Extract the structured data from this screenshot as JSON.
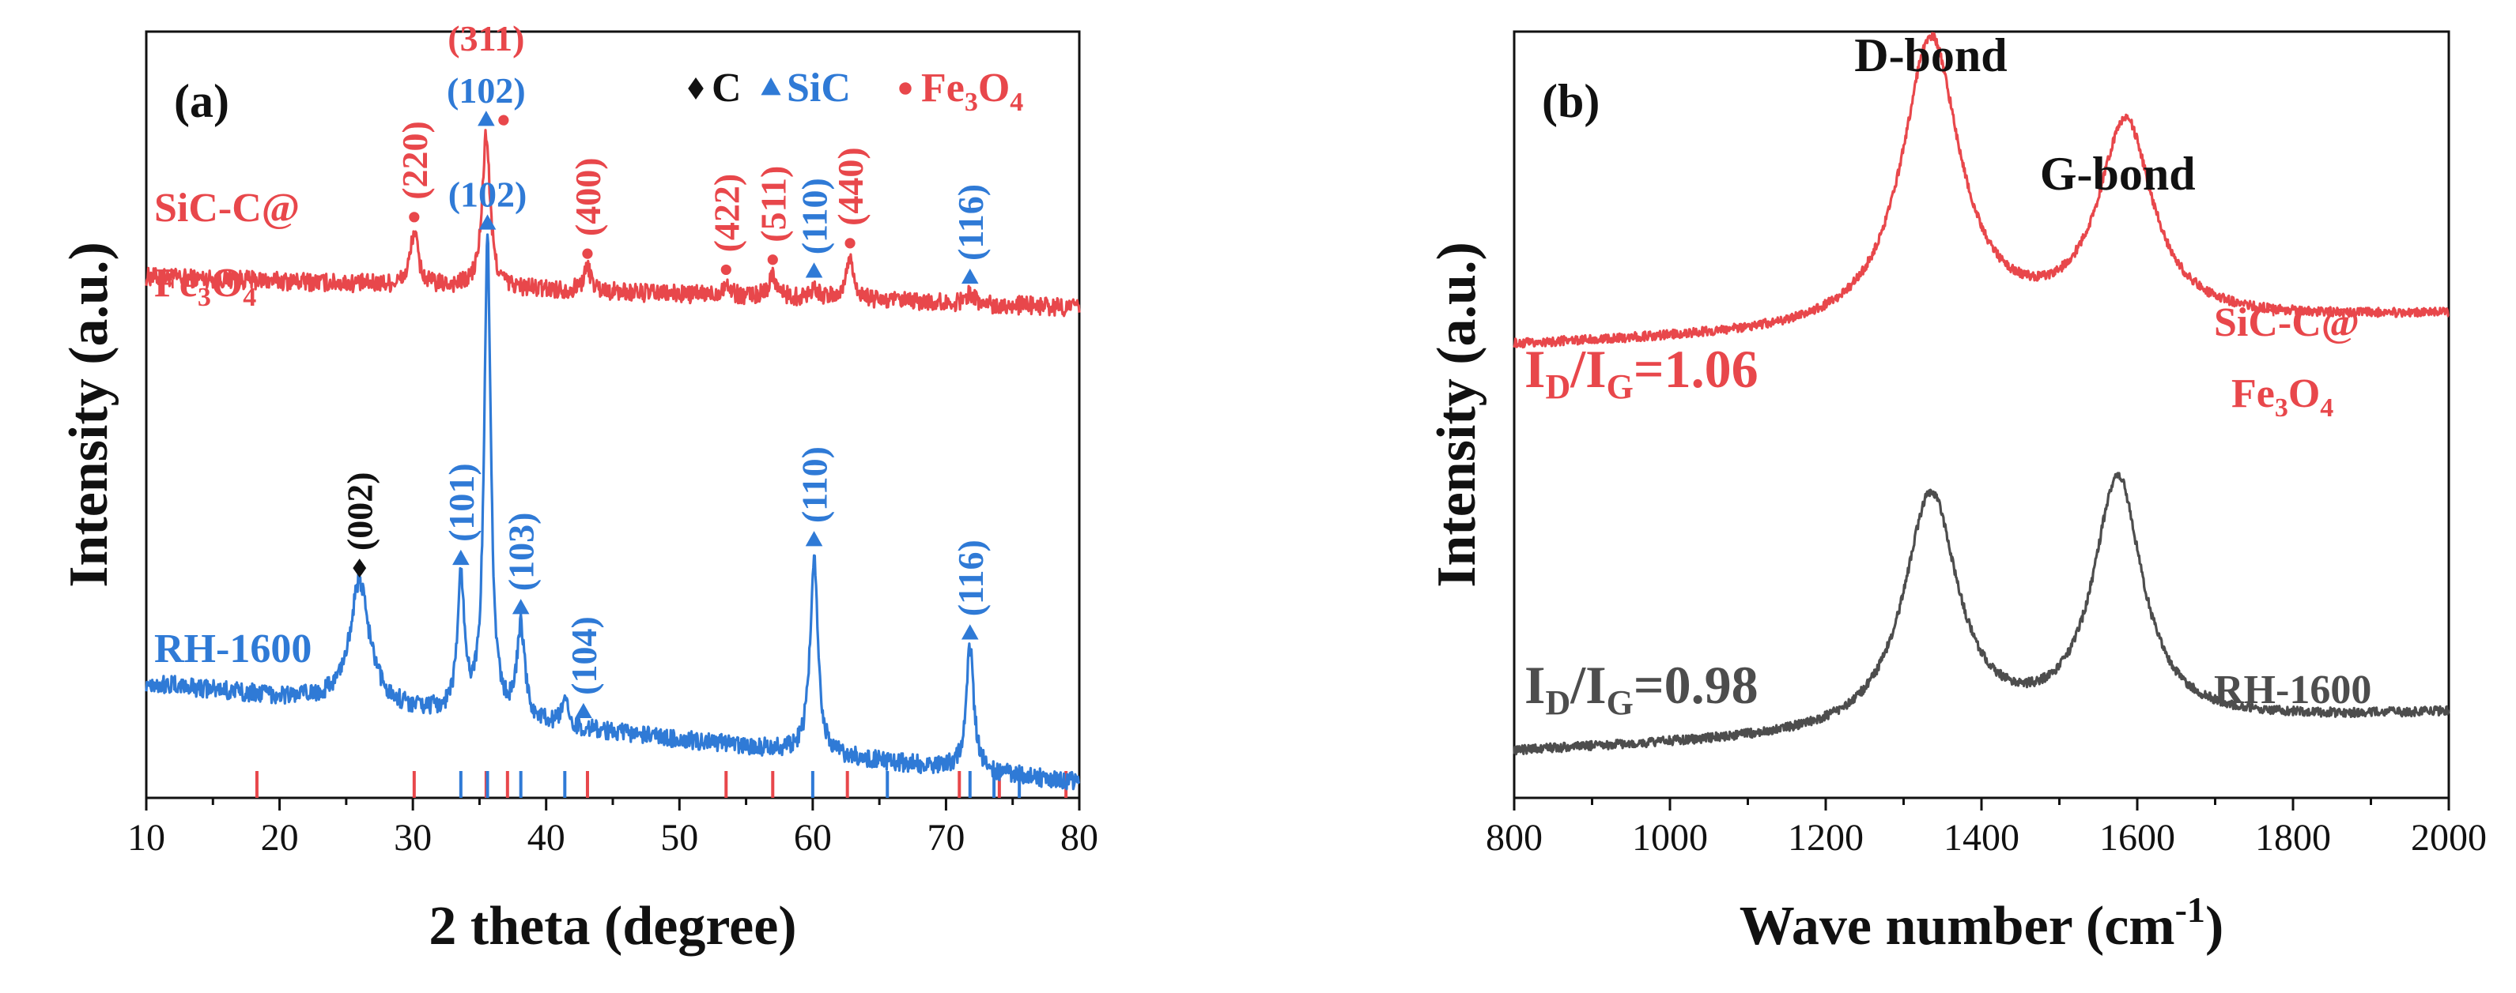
{
  "chart_data": [
    {
      "type": "line",
      "panel_label": "(a)",
      "xlabel": "2 theta (degree)",
      "ylabel": "Intensity (a.u.)",
      "xlim": [
        10,
        80
      ],
      "xticks": [
        10,
        20,
        30,
        40,
        50,
        60,
        70,
        80
      ],
      "legend": {
        "placement": "top-right",
        "entries": [
          {
            "symbol": "diamond",
            "label": "C",
            "color": "#111111"
          },
          {
            "symbol": "triangle",
            "label": "SiC",
            "color": "#2f7ad6"
          },
          {
            "symbol": "circle",
            "label": "Fe3O4",
            "color": "#e8474b"
          }
        ]
      },
      "series": [
        {
          "name": "SiC-C@Fe3O4",
          "label_lines": [
            "SiC-C@",
            "Fe3O4"
          ],
          "color": "#e8474b",
          "baseline": 0.68,
          "baseline_slope": -0.04,
          "noise": 0.012,
          "peaks": [
            {
              "x": 30.1,
              "h": 0.07,
              "w": 0.35
            },
            {
              "x": 35.5,
              "h": 0.2,
              "w": 0.35
            },
            {
              "x": 43.1,
              "h": 0.03,
              "w": 0.35
            },
            {
              "x": 53.5,
              "h": 0.015,
              "w": 0.35
            },
            {
              "x": 57.0,
              "h": 0.03,
              "w": 0.35
            },
            {
              "x": 60.1,
              "h": 0.015,
              "w": 0.35
            },
            {
              "x": 62.8,
              "h": 0.055,
              "w": 0.35
            },
            {
              "x": 71.8,
              "h": 0.015,
              "w": 0.35
            }
          ],
          "annotations": [
            {
              "x": 30.1,
              "text": "(220)",
              "phase": "Fe3O4",
              "orient": "vertical"
            },
            {
              "x": 35.5,
              "text": "(311)",
              "phase": "Fe3O4",
              "orient": "horizontal",
              "row": 1
            },
            {
              "x": 35.5,
              "text": "(102)",
              "phase": "SiC",
              "orient": "horizontal",
              "row": 0
            },
            {
              "x": 43.1,
              "text": "(400)",
              "phase": "Fe3O4",
              "orient": "vertical"
            },
            {
              "x": 53.5,
              "text": "(422)",
              "phase": "Fe3O4",
              "orient": "vertical"
            },
            {
              "x": 57.0,
              "text": "(511)",
              "phase": "Fe3O4",
              "orient": "vertical"
            },
            {
              "x": 60.1,
              "text": "(110)",
              "phase": "SiC",
              "orient": "vertical"
            },
            {
              "x": 62.8,
              "text": "(440)",
              "phase": "Fe3O4",
              "orient": "vertical"
            },
            {
              "x": 71.8,
              "text": "(116)",
              "phase": "SiC",
              "orient": "vertical"
            }
          ]
        },
        {
          "name": "RH-1600",
          "label_lines": [
            "RH-1600"
          ],
          "color": "#2f7ad6",
          "baseline": 0.15,
          "baseline_slope": -0.13,
          "noise": 0.012,
          "peaks": [
            {
              "x": 26.0,
              "h": 0.16,
              "w": 0.9
            },
            {
              "x": 33.6,
              "h": 0.17,
              "w": 0.32
            },
            {
              "x": 35.6,
              "h": 0.62,
              "w": 0.3
            },
            {
              "x": 38.1,
              "h": 0.12,
              "w": 0.35
            },
            {
              "x": 41.4,
              "h": 0.03,
              "w": 0.3
            },
            {
              "x": 60.1,
              "h": 0.26,
              "w": 0.35
            },
            {
              "x": 71.8,
              "h": 0.16,
              "w": 0.35
            }
          ],
          "annotations": [
            {
              "x": 26.0,
              "text": "(002)",
              "phase": "C",
              "orient": "vertical"
            },
            {
              "x": 33.6,
              "text": "(101)",
              "phase": "SiC",
              "orient": "vertical"
            },
            {
              "x": 35.6,
              "text": "(102)",
              "phase": "SiC",
              "orient": "horizontal"
            },
            {
              "x": 38.1,
              "text": "(103)",
              "phase": "SiC",
              "orient": "vertical"
            },
            {
              "x": 42.8,
              "text": "(104)",
              "phase": "SiC",
              "orient": "vertical"
            },
            {
              "x": 60.1,
              "text": "(110)",
              "phase": "SiC",
              "orient": "vertical"
            },
            {
              "x": 71.8,
              "text": "(116)",
              "phase": "SiC",
              "orient": "vertical"
            }
          ]
        }
      ],
      "reference_lines": {
        "Fe3O4": {
          "color": "#e8474b",
          "positions": [
            18.3,
            30.1,
            35.5,
            37.1,
            43.1,
            53.5,
            57.0,
            62.6,
            71.0,
            74.0,
            79.0
          ]
        },
        "SiC": {
          "color": "#2f7ad6",
          "positions": [
            33.6,
            35.6,
            38.1,
            41.4,
            60.0,
            65.6,
            71.8,
            73.6,
            75.5
          ]
        }
      }
    },
    {
      "type": "line",
      "panel_label": "(b)",
      "xlabel": "Wave number (cm-1)",
      "xlabel_parts": [
        "Wave number (cm",
        "-1",
        ")"
      ],
      "ylabel": "Intensity (a.u.)",
      "xlim": [
        800,
        2000
      ],
      "xticks": [
        800,
        1000,
        1200,
        1400,
        1600,
        1800,
        2000
      ],
      "band_labels": [
        "D-bond",
        "G-bond"
      ],
      "series": [
        {
          "name": "SiC-C@Fe3O4",
          "label_lines": [
            "SiC-C@",
            "Fe3O4"
          ],
          "color": "#e8474b",
          "ratio_text": "ID/IG=1.06",
          "ratio_value": 1.06,
          "baseline": 0.59,
          "baseline_slope": 0.04,
          "noise": 0.006,
          "peaks": [
            {
              "x": 1335,
              "h": 0.38,
              "w": 45
            },
            {
              "x": 1585,
              "h": 0.26,
              "w": 42
            }
          ]
        },
        {
          "name": "RH-1600",
          "label_lines": [
            "RH-1600"
          ],
          "color": "#4d4d4d",
          "ratio_text": "ID/IG=0.98",
          "ratio_value": 0.98,
          "baseline": 0.06,
          "baseline_slope": 0.05,
          "noise": 0.006,
          "peaks": [
            {
              "x": 1335,
              "h": 0.31,
              "w": 42
            },
            {
              "x": 1575,
              "h": 0.32,
              "w": 38
            }
          ]
        }
      ]
    }
  ]
}
